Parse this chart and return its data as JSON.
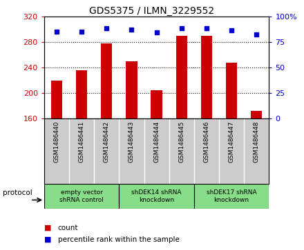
{
  "title": "GDS5375 / ILMN_3229552",
  "samples": [
    "GSM1486440",
    "GSM1486441",
    "GSM1486442",
    "GSM1486443",
    "GSM1486444",
    "GSM1486445",
    "GSM1486446",
    "GSM1486447",
    "GSM1486448"
  ],
  "counts": [
    220,
    236,
    278,
    250,
    205,
    289,
    289,
    248,
    172
  ],
  "percentiles": [
    85,
    85,
    88,
    87,
    84,
    88,
    88,
    86,
    82
  ],
  "ymin": 160,
  "ymax": 320,
  "yticks_left": [
    160,
    200,
    240,
    280,
    320
  ],
  "yticks_right": [
    0,
    25,
    50,
    75,
    100
  ],
  "bar_color": "#cc0000",
  "dot_color": "#0000cc",
  "groups": [
    {
      "label": "empty vector\nshRNA control",
      "start": 0,
      "end": 3
    },
    {
      "label": "shDEK14 shRNA\nknockdown",
      "start": 3,
      "end": 6
    },
    {
      "label": "shDEK17 shRNA\nknockdown",
      "start": 6,
      "end": 9
    }
  ],
  "legend_count_label": "count",
  "legend_pct_label": "percentile rank within the sample",
  "protocol_label": "protocol",
  "bar_width": 0.45,
  "group_color": "#88dd88",
  "sample_box_color": "#cccccc",
  "plot_bg": "#ffffff",
  "title_fontsize": 10,
  "tick_fontsize": 8,
  "label_fontsize": 6.5,
  "legend_fontsize": 7.5,
  "protocol_fontsize": 7.5
}
